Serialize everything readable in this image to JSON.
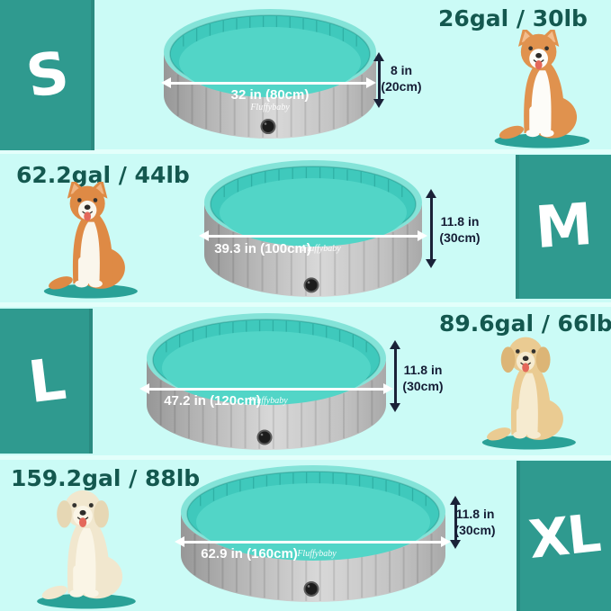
{
  "brand": "Fluffybaby",
  "colors": {
    "size_block_teal": "#2F9A8F",
    "background_cyan": "#CBFBF6",
    "capacity_text": "#14584F",
    "dimension_text": "#151D35",
    "pool_rim_teal": "#84E3D8",
    "pool_inner_teal": "#3FC9BC",
    "pool_floor_teal": "#52D5C7",
    "pool_wall_gray": "#C6C6C6",
    "dog_mat_teal": "#2AA197"
  },
  "rows": [
    {
      "size": "S",
      "capacity": "26gal / 30lb",
      "width_label": "32 in (80cm)",
      "height_line1": "8 in",
      "height_line2": "(20cm)",
      "dog": "corgi"
    },
    {
      "size": "M",
      "capacity": "62.2gal / 44lb",
      "width_label": "39.3 in (100cm)",
      "height_line1": "11.8 in",
      "height_line2": "(30cm)",
      "dog": "shiba-inu"
    },
    {
      "size": "L",
      "capacity": "89.6gal / 66lb",
      "width_label": "47.2 in (120cm)",
      "height_line1": "11.8 in",
      "height_line2": "(30cm)",
      "dog": "golden-retriever"
    },
    {
      "size": "XL",
      "capacity": "159.2gal / 88lb",
      "width_label": "62.9 in (160cm)",
      "height_line1": "11.8 in",
      "height_line2": "(30cm)",
      "dog": "labrador"
    }
  ]
}
